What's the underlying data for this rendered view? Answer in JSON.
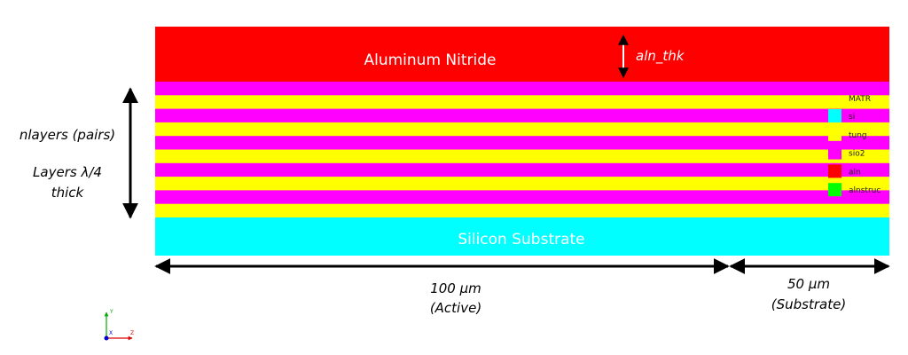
{
  "layers": {
    "top": "Aluminum Nitride",
    "bottom": "Silicon Substrate"
  },
  "dimensions": {
    "aln_thickness": "aln_thk",
    "layer_count": "nlayers (pairs)",
    "layer_thickness": [
      "Layers λ/4",
      "thick"
    ],
    "active_width": [
      "100 µm",
      "(Active)"
    ],
    "substrate_width": [
      "50 µm",
      "(Substrate)"
    ]
  },
  "legend": {
    "title": "MATR",
    "items": [
      "si",
      "tung",
      "sio2",
      "aln",
      "alnstruc"
    ]
  },
  "axes": {
    "y": "Y",
    "z": "Z",
    "x": "X"
  }
}
